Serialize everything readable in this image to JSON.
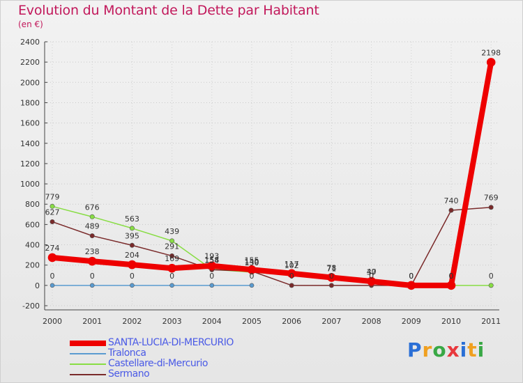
{
  "header": {
    "title": "Evolution du Montant de la Dette par Habitant",
    "subtitle": "(en €)"
  },
  "logo": {
    "text": "Proxiti"
  },
  "chart_data": {
    "type": "line",
    "title": "Evolution du Montant de la Dette par Habitant",
    "ylabel": "(en €)",
    "xlabel": "",
    "ylim": [
      -200,
      2400
    ],
    "yticks": [
      -200,
      0,
      200,
      400,
      600,
      800,
      1000,
      1200,
      1400,
      1600,
      1800,
      2000,
      2200,
      2400
    ],
    "x": [
      "2000",
      "2001",
      "2002",
      "2003",
      "2004",
      "2005",
      "2006",
      "2007",
      "2008",
      "2009",
      "2010",
      "2011"
    ],
    "series": [
      {
        "name": "SANTA-LUCIA-DI-MERCURIO",
        "color": "#ee0000",
        "values": [
          274,
          238,
          204,
          169,
          193,
          155,
          117,
          78,
          40,
          0,
          0,
          2198
        ],
        "labels": [
          "274",
          "238",
          "204",
          "169",
          "193",
          "155",
          "117",
          "78",
          "40",
          "0",
          "0",
          "2198"
        ]
      },
      {
        "name": "Tralonca",
        "color": "#5a9bd0",
        "values": [
          0,
          0,
          0,
          0,
          0,
          0,
          null,
          null,
          null,
          null,
          null,
          null
        ],
        "labels": [
          "0",
          "0",
          "0",
          "0",
          "0",
          "0",
          "",
          "",
          "",
          "",
          "",
          ""
        ]
      },
      {
        "name": "Castellare-di-Mercurio",
        "color": "#88dd44",
        "values": [
          779,
          676,
          563,
          439,
          158,
          130,
          102,
          71,
          37,
          0,
          0,
          0
        ],
        "labels": [
          "779",
          "676",
          "563",
          "439",
          "158",
          "130",
          "102",
          "71",
          "37",
          "0",
          "0",
          "0"
        ]
      },
      {
        "name": "Sermano",
        "color": "#7a2a2a",
        "values": [
          627,
          489,
          395,
          291,
          154,
          140,
          0,
          0,
          0,
          0,
          740,
          769
        ],
        "labels": [
          "627",
          "489",
          "395",
          "291",
          "154",
          "140",
          "0",
          "0",
          "0",
          "0",
          "740",
          "769"
        ]
      }
    ]
  }
}
